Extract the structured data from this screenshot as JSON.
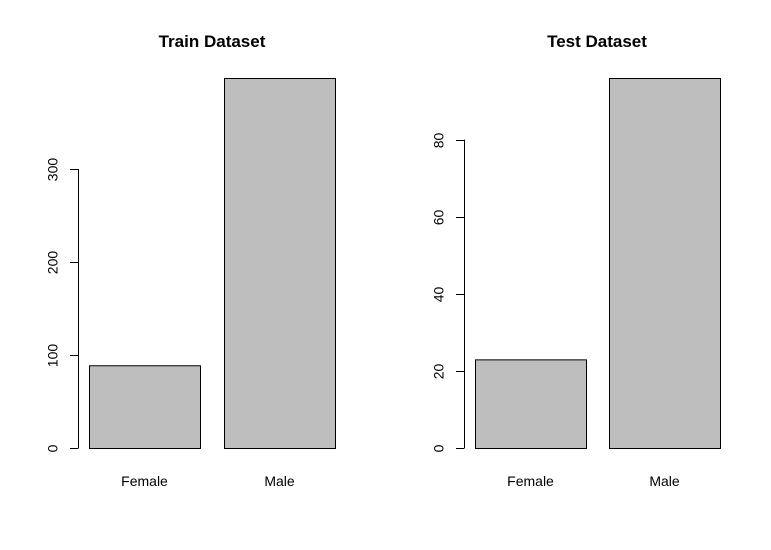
{
  "chart_data": [
    {
      "type": "bar",
      "title": "Train Dataset",
      "categories": [
        "Female",
        "Male"
      ],
      "values": [
        89,
        398
      ],
      "yticks": [
        0,
        100,
        200,
        300
      ],
      "ylim": [
        0,
        398
      ],
      "bar_color": "#bebebe",
      "grid": false
    },
    {
      "type": "bar",
      "title": "Test Dataset",
      "categories": [
        "Female",
        "Male"
      ],
      "values": [
        23,
        96
      ],
      "yticks": [
        0,
        20,
        40,
        60,
        80
      ],
      "ylim": [
        0,
        96
      ],
      "bar_color": "#bebebe",
      "grid": false
    }
  ]
}
